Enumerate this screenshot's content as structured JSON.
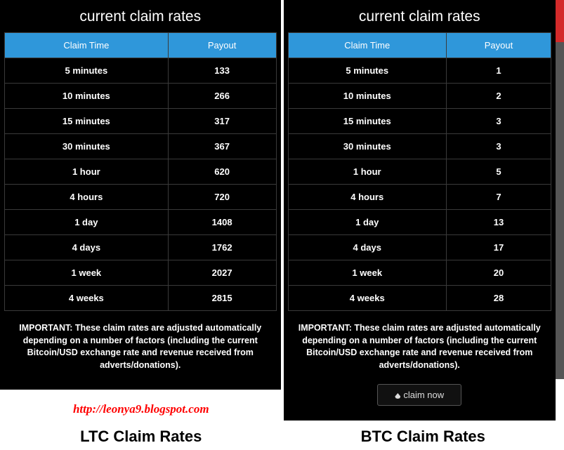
{
  "left": {
    "title": "current claim rates",
    "columns": [
      "Claim Time",
      "Payout"
    ],
    "rows": [
      {
        "time": "5 minutes",
        "payout": "133"
      },
      {
        "time": "10 minutes",
        "payout": "266"
      },
      {
        "time": "15 minutes",
        "payout": "317"
      },
      {
        "time": "30 minutes",
        "payout": "367"
      },
      {
        "time": "1 hour",
        "payout": "620"
      },
      {
        "time": "4 hours",
        "payout": "720"
      },
      {
        "time": "1 day",
        "payout": "1408"
      },
      {
        "time": "4 days",
        "payout": "1762"
      },
      {
        "time": "1 week",
        "payout": "2027"
      },
      {
        "time": "4 weeks",
        "payout": "2815"
      }
    ],
    "important": "IMPORTANT: These claim rates are adjusted automatically depending on a number of factors (including the current Bitcoin/USD exchange rate and revenue received from adverts/donations).",
    "url": "http://leonya9.blogspot.com",
    "bottom_label": "LTC Claim Rates"
  },
  "right": {
    "title": "current claim rates",
    "columns": [
      "Claim Time",
      "Payout"
    ],
    "rows": [
      {
        "time": "5 minutes",
        "payout": "1"
      },
      {
        "time": "10 minutes",
        "payout": "2"
      },
      {
        "time": "15 minutes",
        "payout": "3"
      },
      {
        "time": "30 minutes",
        "payout": "3"
      },
      {
        "time": "1 hour",
        "payout": "5"
      },
      {
        "time": "4 hours",
        "payout": "7"
      },
      {
        "time": "1 day",
        "payout": "13"
      },
      {
        "time": "4 days",
        "payout": "17"
      },
      {
        "time": "1 week",
        "payout": "20"
      },
      {
        "time": "4 weeks",
        "payout": "28"
      }
    ],
    "important": "IMPORTANT: These claim rates are adjusted automatically depending on a number of factors (including the current Bitcoin/USD exchange rate and revenue received from adverts/donations).",
    "claim_button": "claim now",
    "bottom_label": "BTC Claim Rates"
  },
  "style": {
    "header_bg": "#2f97da",
    "panel_bg": "#000000",
    "text_color": "#ffffff",
    "border_color": "#3a3a3a",
    "url_color": "#ff0000",
    "bottom_label_color": "#000000"
  }
}
